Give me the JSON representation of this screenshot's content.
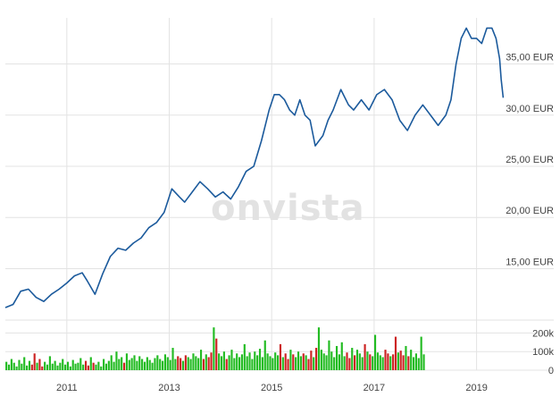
{
  "watermark": "onvista",
  "colors": {
    "line": "#1b5a9c",
    "up": "#22bb22",
    "down": "#cc2222",
    "grid": "#e3e3e3"
  },
  "chart_data": {
    "type": "line",
    "currency": "EUR",
    "price_axis": {
      "ylim": [
        10.5,
        39.5
      ],
      "ticks": [
        15,
        20,
        25,
        30,
        35
      ],
      "tick_labels": [
        "15,00 EUR",
        "20,00 EUR",
        "25,00 EUR",
        "30,00 EUR",
        "35,00 EUR"
      ],
      "side": "right"
    },
    "x_axis": {
      "range": [
        2009.8,
        2019.6
      ],
      "ticks": [
        2011,
        2013,
        2015,
        2017,
        2019
      ],
      "tick_labels": [
        "2011",
        "2013",
        "2015",
        "2017",
        "2019"
      ]
    },
    "volume_axis": {
      "ylim": [
        0,
        250000
      ],
      "ticks": [
        0,
        100000,
        200000
      ],
      "tick_labels": [
        "0",
        "100k",
        "200k"
      ]
    },
    "series": [
      {
        "x": [
          2009.8,
          2009.95,
          2010.1,
          2010.25,
          2010.4,
          2010.55,
          2010.7,
          2010.85,
          2011.0,
          2011.15,
          2011.3,
          2011.4,
          2011.55,
          2011.7,
          2011.85,
          2012.0,
          2012.15,
          2012.3,
          2012.45,
          2012.6,
          2012.75,
          2012.9,
          2013.05,
          2013.2,
          2013.3,
          2013.45,
          2013.6,
          2013.75,
          2013.9,
          2014.05,
          2014.2,
          2014.35,
          2014.5,
          2014.65,
          2014.8,
          2014.95,
          2015.05,
          2015.15,
          2015.25,
          2015.35,
          2015.45,
          2015.55,
          2015.65,
          2015.75,
          2015.85,
          2016.0,
          2016.1,
          2016.2,
          2016.35,
          2016.5,
          2016.6,
          2016.75,
          2016.9,
          2017.05,
          2017.2,
          2017.35,
          2017.5,
          2017.65,
          2017.8,
          2017.95,
          2018.1,
          2018.25,
          2018.4,
          2018.5,
          2018.6,
          2018.7,
          2018.8,
          2018.9,
          2019.0,
          2019.1,
          2019.2,
          2019.3,
          2019.38,
          2019.45,
          2019.48,
          2019.52
        ],
        "values": [
          11.2,
          11.5,
          12.8,
          13.0,
          12.2,
          11.8,
          12.5,
          13.0,
          13.6,
          14.3,
          14.6,
          13.8,
          12.5,
          14.5,
          16.2,
          17.0,
          16.8,
          17.5,
          18.0,
          19.0,
          19.5,
          20.5,
          22.8,
          22.0,
          21.5,
          22.5,
          23.5,
          22.8,
          22.0,
          22.5,
          21.8,
          23.0,
          24.5,
          25.0,
          27.5,
          30.5,
          32.0,
          32.0,
          31.5,
          30.5,
          30.0,
          31.5,
          30.0,
          29.5,
          27.0,
          28.0,
          29.5,
          30.5,
          32.5,
          31.0,
          30.5,
          31.5,
          30.5,
          32.0,
          32.5,
          31.5,
          29.5,
          28.5,
          30.0,
          31.0,
          30.0,
          29.0,
          30.0,
          31.5,
          35.0,
          37.5,
          38.5,
          37.5,
          37.5,
          37.0,
          38.5,
          38.5,
          37.5,
          35.5,
          33.5,
          31.7
        ]
      }
    ],
    "volume": {
      "step_years": 0.05,
      "start_year": 2009.82,
      "values": [
        45000,
        30000,
        60000,
        40000,
        20000,
        55000,
        35000,
        70000,
        25000,
        50000,
        30000,
        90000,
        40000,
        60000,
        20000,
        45000,
        30000,
        75000,
        35000,
        50000,
        25000,
        40000,
        60000,
        30000,
        45000,
        20000,
        55000,
        35000,
        40000,
        65000,
        30000,
        50000,
        25000,
        70000,
        40000,
        30000,
        45000,
        20000,
        60000,
        35000,
        50000,
        80000,
        45000,
        100000,
        60000,
        70000,
        40000,
        90000,
        55000,
        65000,
        80000,
        50000,
        75000,
        60000,
        45000,
        70000,
        55000,
        40000,
        65000,
        80000,
        60000,
        50000,
        85000,
        70000,
        55000,
        120000,
        60000,
        75000,
        65000,
        50000,
        80000,
        70000,
        60000,
        90000,
        75000,
        65000,
        110000,
        60000,
        85000,
        70000,
        95000,
        230000,
        170000,
        90000,
        75000,
        100000,
        60000,
        80000,
        110000,
        65000,
        90000,
        70000,
        85000,
        140000,
        75000,
        95000,
        60000,
        100000,
        80000,
        115000,
        70000,
        160000,
        90000,
        75000,
        65000,
        95000,
        80000,
        140000,
        70000,
        90000,
        60000,
        110000,
        85000,
        70000,
        100000,
        75000,
        90000,
        80000,
        60000,
        105000,
        70000,
        120000,
        230000,
        110000,
        90000,
        80000,
        160000,
        100000,
        70000,
        130000,
        85000,
        150000,
        75000,
        95000,
        65000,
        120000,
        80000,
        110000,
        90000,
        70000,
        140000,
        100000,
        85000,
        75000,
        190000,
        95000,
        80000,
        70000,
        110000,
        90000,
        75000,
        85000,
        180000,
        95000,
        105000,
        80000,
        130000,
        75000,
        110000,
        70000,
        90000,
        65000,
        180000,
        85000
      ]
    }
  }
}
